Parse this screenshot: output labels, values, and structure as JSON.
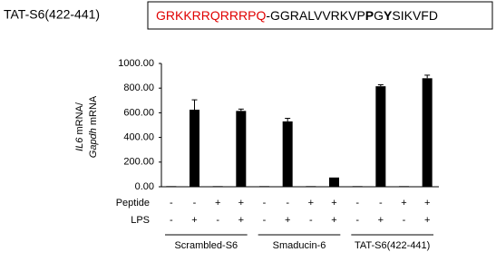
{
  "header": {
    "label": "TAT-S6(422-441)",
    "sequence": [
      {
        "text": "GRKKRRQRRRPQ",
        "color": "#e00000",
        "bold": false
      },
      {
        "text": "-GGRALVVRKVP",
        "color": "#000000",
        "bold": false
      },
      {
        "text": "P",
        "color": "#000000",
        "bold": true
      },
      {
        "text": "G",
        "color": "#000000",
        "bold": false
      },
      {
        "text": "Y",
        "color": "#000000",
        "bold": true
      },
      {
        "text": "SIKVFD",
        "color": "#000000",
        "bold": false
      }
    ]
  },
  "chart_data": {
    "type": "bar",
    "ylabel_lines": [
      [
        {
          "text": "IL6",
          "italic": true
        },
        {
          "text": " mRNA/",
          "italic": false
        }
      ],
      [
        {
          "text": "Gapdh",
          "italic": true
        },
        {
          "text": " mRNA",
          "italic": false
        }
      ]
    ],
    "values": [
      5,
      625,
      5,
      615,
      5,
      530,
      5,
      75,
      5,
      815,
      5,
      880
    ],
    "errors": [
      null,
      80,
      null,
      15,
      null,
      25,
      null,
      null,
      null,
      12,
      null,
      25
    ],
    "color": "#000000",
    "ylim": [
      0,
      1000
    ],
    "yticks": [
      {
        "value": 0,
        "label": "0.00"
      },
      {
        "value": 200,
        "label": "200.00"
      },
      {
        "value": 400,
        "label": "400.00"
      },
      {
        "value": 600,
        "label": "600.00"
      },
      {
        "value": 800,
        "label": "800.00"
      },
      {
        "value": 1000,
        "label": "1000.00"
      }
    ],
    "rows": [
      {
        "name": "Peptide",
        "values": [
          "-",
          "-",
          "+",
          "+",
          "-",
          "-",
          "+",
          "+",
          "-",
          "-",
          "+",
          "+"
        ]
      },
      {
        "name": "LPS",
        "values": [
          "-",
          "+",
          "-",
          "+",
          "-",
          "+",
          "-",
          "+",
          "-",
          "+",
          "-",
          "+"
        ]
      }
    ],
    "groups": [
      "Scrambled-S6",
      "Smaducin-6",
      "TAT-S6(422-441)"
    ]
  }
}
